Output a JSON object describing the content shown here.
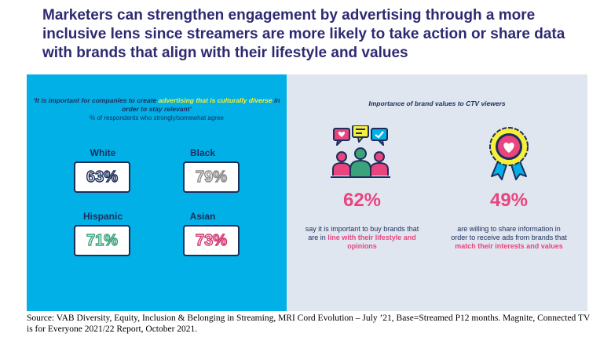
{
  "title": "Marketers can strengthen engagement by advertising through a more inclusive lens since streamers are more likely to take action or share data with brands that align with their lifestyle and values",
  "left": {
    "quote_part1": "‘It is important for companies to create ",
    "quote_highlight": "advertising that is culturally diverse",
    "quote_part2": " in order to stay relevant’",
    "respondents_note": "% of respondents who strongly/somewhat agree",
    "groups": [
      {
        "label": "White",
        "value": "63%",
        "color": "#1d2e5c"
      },
      {
        "label": "Black",
        "value": "79%",
        "color": "#8a8a8a"
      },
      {
        "label": "Hispanic",
        "value": "71%",
        "color": "#3aa37a"
      },
      {
        "label": "Asian",
        "value": "73%",
        "color": "#d1336f"
      }
    ]
  },
  "right": {
    "heading": "Importance of brand values to CTV viewers",
    "stats": [
      {
        "value": "62%",
        "text_pre": "say it is important to buy brands that are in ",
        "text_highlight": "line with their lifestyle and opinions",
        "text_post": ""
      },
      {
        "value": "49%",
        "text_pre": "are willing to share information in order to receive ads from brands that ",
        "text_highlight": "match their interests and values",
        "text_post": ""
      }
    ]
  },
  "source": "Source: VAB Diversity, Equity, Inclusion & Belonging in Streaming, MRI Cord Evolution – July ’21, Base=Streamed P12 months. Magnite, Connected TV is for Everyone 2021/22 Report, October 2021.",
  "colors": {
    "title": "#2e2a72",
    "left_panel": "#00b0e6",
    "right_panel": "#dfe6ef",
    "accent_pink": "#e8457f",
    "highlight_yellow": "#f7ef3a"
  },
  "icons": [
    "people-chat-icon",
    "award-ribbon-icon"
  ]
}
